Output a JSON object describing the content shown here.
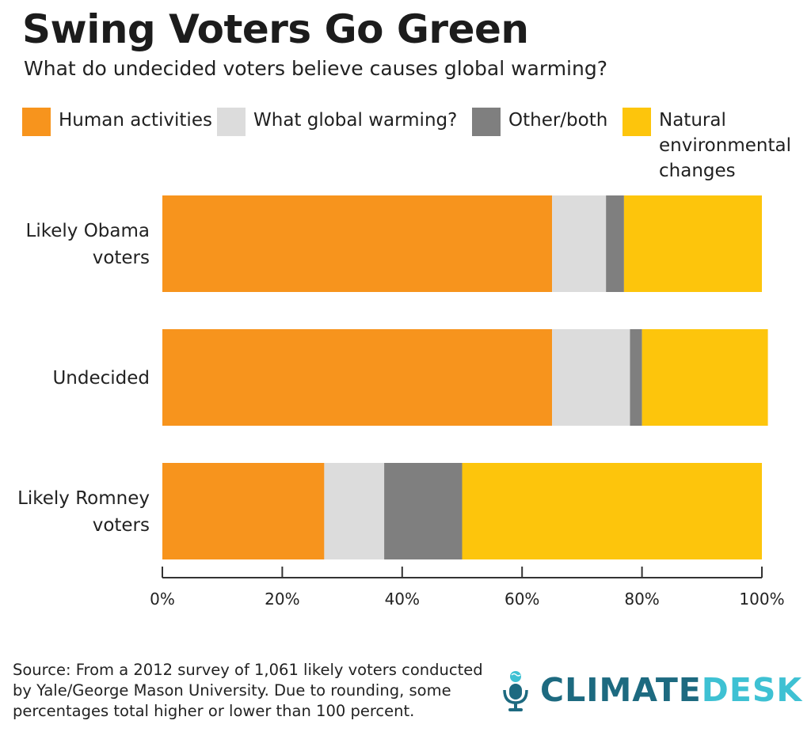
{
  "header": {
    "title": "Swing Voters Go Green",
    "subtitle": "What do undecided voters believe causes global warming?"
  },
  "chart_data": {
    "type": "bar",
    "orientation": "horizontal",
    "stacked": true,
    "title": "Swing Voters Go Green",
    "subtitle": "What do undecided voters believe causes global warming?",
    "categories": [
      [
        "Likely Obama",
        "voters"
      ],
      [
        "Undecided"
      ],
      [
        "Likely Romney",
        "voters"
      ]
    ],
    "series": [
      {
        "name": "Human activities",
        "color": "#f7941d",
        "values": [
          65,
          65,
          27
        ]
      },
      {
        "name": "What global warming?",
        "color": "#dcdcdc",
        "values": [
          9,
          13,
          10
        ]
      },
      {
        "name": "Other/both",
        "color": "#7f7f7f",
        "values": [
          3,
          2,
          13
        ]
      },
      {
        "name": "Natural environmental changes",
        "legend_lines": [
          "Natural",
          "environmental",
          "changes"
        ],
        "color": "#fdc50c",
        "values": [
          23,
          21,
          50
        ]
      }
    ],
    "xlim": [
      0,
      100
    ],
    "xticks": [
      0,
      20,
      40,
      60,
      80,
      100
    ],
    "xtick_labels": [
      "0%",
      "20%",
      "40%",
      "60%",
      "80%",
      "100%"
    ],
    "grid": false,
    "legend_position": "top"
  },
  "footer": {
    "source": "Source: From a 2012 survey of 1,061 likely voters conducted by Yale/George Mason University. Due to rounding, some percentages total higher or lower than 100 percent.",
    "logo": {
      "part1": "CLIMATE",
      "part2": "DESK",
      "color1": "#1d6a80",
      "color2": "#3ec1d3"
    }
  }
}
